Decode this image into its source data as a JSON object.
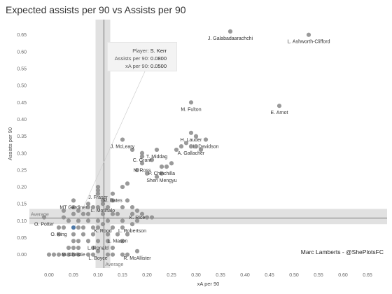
{
  "title": "Expected assists per 90 vs Assists per 90",
  "credit": "Marc Lamberts - @ShePlotsFC",
  "tooltip": {
    "player_label": "Player:",
    "player_value": "S. Kerr",
    "assists_label": "Assists per 90:",
    "assists_value": "0.0800",
    "xa_label": "xA per 90:",
    "xa_value": "0.0500"
  },
  "colors": {
    "point": "#8f8f8f",
    "highlight": "#4e79a7",
    "band": "#dcdcdc",
    "avg_line": "#555555"
  },
  "chart_data": {
    "type": "scatter",
    "title": "Expected assists per 90 vs Assists per 90",
    "xlabel": "xA per 90",
    "ylabel": "Assists per 90",
    "xlim": [
      -0.04,
      0.69
    ],
    "ylim": [
      -0.04,
      0.695
    ],
    "xticks": [
      "0.00",
      "0.05",
      "0.10",
      "0.15",
      "0.20",
      "0.25",
      "0.30",
      "0.35",
      "0.40",
      "0.45",
      "0.50",
      "0.55",
      "0.60",
      "0.65"
    ],
    "yticks": [
      "0.00",
      "0.05",
      "0.10",
      "0.15",
      "0.20",
      "0.25",
      "0.30",
      "0.35",
      "0.40",
      "0.45",
      "0.50",
      "0.55",
      "0.60",
      "0.65"
    ],
    "grid": false,
    "average": {
      "label": "Average",
      "x": 0.112,
      "y": 0.108,
      "x_band": [
        0.095,
        0.125
      ],
      "y_band": [
        0.09,
        0.135
      ]
    },
    "labeled_points": [
      {
        "name": "J. Galabadaarachchi",
        "x": 0.37,
        "y": 0.66
      },
      {
        "name": "L. Ashworth-Clifford",
        "x": 0.53,
        "y": 0.65
      },
      {
        "name": "M. Fulton",
        "x": 0.29,
        "y": 0.45
      },
      {
        "name": "E. Arnot",
        "x": 0.47,
        "y": 0.44
      },
      {
        "name": "H. Lauder",
        "x": 0.29,
        "y": 0.36
      },
      {
        "name": "L. Davidson",
        "x": 0.32,
        "y": 0.34
      },
      {
        "name": "J. McLeary",
        "x": 0.15,
        "y": 0.34
      },
      {
        "name": "A. Gallacher",
        "x": 0.29,
        "y": 0.32
      },
      {
        "name": "C. Grant",
        "x": 0.19,
        "y": 0.3
      },
      {
        "name": "T. Middag",
        "x": 0.22,
        "y": 0.31
      },
      {
        "name": "N. Ross",
        "x": 0.19,
        "y": 0.27
      },
      {
        "name": "P. Chinchilla",
        "x": 0.23,
        "y": 0.26
      },
      {
        "name": "Shen Mengyu",
        "x": 0.23,
        "y": 0.24
      },
      {
        "name": "J. Fraser",
        "x": 0.1,
        "y": 0.19
      },
      {
        "name": "M. Bates",
        "x": 0.13,
        "y": 0.18
      },
      {
        "name": "MT Gardiner",
        "x": 0.05,
        "y": 0.16
      },
      {
        "name": "L. Motlhalo",
        "x": 0.11,
        "y": 0.15
      },
      {
        "name": "K. Rice",
        "x": 0.18,
        "y": 0.13
      },
      {
        "name": "O. Potter",
        "x": -0.01,
        "y": 0.11
      },
      {
        "name": "O. King",
        "x": 0.02,
        "y": 0.08
      },
      {
        "name": "K. Rood",
        "x": 0.11,
        "y": 0.09
      },
      {
        "name": "L. Robertson",
        "x": 0.17,
        "y": 0.09
      },
      {
        "name": "L. Mason",
        "x": 0.14,
        "y": 0.06
      },
      {
        "name": "L. Ronald",
        "x": 0.1,
        "y": 0.04
      },
      {
        "name": "M. Christie",
        "x": 0.05,
        "y": 0.02
      },
      {
        "name": "L. Boyce",
        "x": 0.1,
        "y": 0.01
      },
      {
        "name": "R. McAllister",
        "x": 0.18,
        "y": 0.01
      }
    ],
    "highlight_point": {
      "name": "S. Kerr",
      "x": 0.05,
      "y": 0.08
    },
    "other_points": [
      [
        0.0,
        0.0
      ],
      [
        0.01,
        0.0
      ],
      [
        0.02,
        0.0
      ],
      [
        0.03,
        0.0
      ],
      [
        0.04,
        0.0
      ],
      [
        0.05,
        0.0
      ],
      [
        0.06,
        0.0
      ],
      [
        0.08,
        0.0
      ],
      [
        0.09,
        0.0
      ],
      [
        0.12,
        0.0
      ],
      [
        0.13,
        0.0
      ],
      [
        0.15,
        0.0
      ],
      [
        0.16,
        0.0
      ],
      [
        0.04,
        0.02
      ],
      [
        0.06,
        0.02
      ],
      [
        0.09,
        0.02
      ],
      [
        0.13,
        0.02
      ],
      [
        0.05,
        0.04
      ],
      [
        0.06,
        0.04
      ],
      [
        0.08,
        0.04
      ],
      [
        0.12,
        0.04
      ],
      [
        0.15,
        0.04
      ],
      [
        0.02,
        0.06
      ],
      [
        0.05,
        0.06
      ],
      [
        0.07,
        0.06
      ],
      [
        0.09,
        0.06
      ],
      [
        0.12,
        0.06
      ],
      [
        0.16,
        0.06
      ],
      [
        0.03,
        0.08
      ],
      [
        0.06,
        0.08
      ],
      [
        0.07,
        0.08
      ],
      [
        0.09,
        0.08
      ],
      [
        0.1,
        0.08
      ],
      [
        0.13,
        0.08
      ],
      [
        0.15,
        0.08
      ],
      [
        0.04,
        0.1
      ],
      [
        0.06,
        0.1
      ],
      [
        0.08,
        0.1
      ],
      [
        0.1,
        0.1
      ],
      [
        0.12,
        0.1
      ],
      [
        0.15,
        0.1
      ],
      [
        0.18,
        0.1
      ],
      [
        0.2,
        0.11
      ],
      [
        0.21,
        0.11
      ],
      [
        0.03,
        0.11
      ],
      [
        0.05,
        0.12
      ],
      [
        0.07,
        0.12
      ],
      [
        0.08,
        0.12
      ],
      [
        0.11,
        0.12
      ],
      [
        0.13,
        0.12
      ],
      [
        0.14,
        0.12
      ],
      [
        0.17,
        0.12
      ],
      [
        0.19,
        0.12
      ],
      [
        0.03,
        0.13
      ],
      [
        0.06,
        0.13
      ],
      [
        0.08,
        0.14
      ],
      [
        0.09,
        0.14
      ],
      [
        0.1,
        0.14
      ],
      [
        0.12,
        0.14
      ],
      [
        0.15,
        0.14
      ],
      [
        0.17,
        0.14
      ],
      [
        0.05,
        0.14
      ],
      [
        0.08,
        0.15
      ],
      [
        0.11,
        0.16
      ],
      [
        0.13,
        0.16
      ],
      [
        0.16,
        0.16
      ],
      [
        0.1,
        0.18
      ],
      [
        0.15,
        0.2
      ],
      [
        0.16,
        0.21
      ],
      [
        0.1,
        0.2
      ],
      [
        0.18,
        0.25
      ],
      [
        0.2,
        0.24
      ],
      [
        0.22,
        0.23
      ],
      [
        0.24,
        0.26
      ],
      [
        0.25,
        0.27
      ],
      [
        0.17,
        0.31
      ],
      [
        0.19,
        0.29
      ],
      [
        0.21,
        0.28
      ],
      [
        0.26,
        0.31
      ],
      [
        0.28,
        0.33
      ],
      [
        0.3,
        0.32
      ],
      [
        0.31,
        0.31
      ],
      [
        0.3,
        0.35
      ],
      [
        0.27,
        0.32
      ]
    ]
  }
}
